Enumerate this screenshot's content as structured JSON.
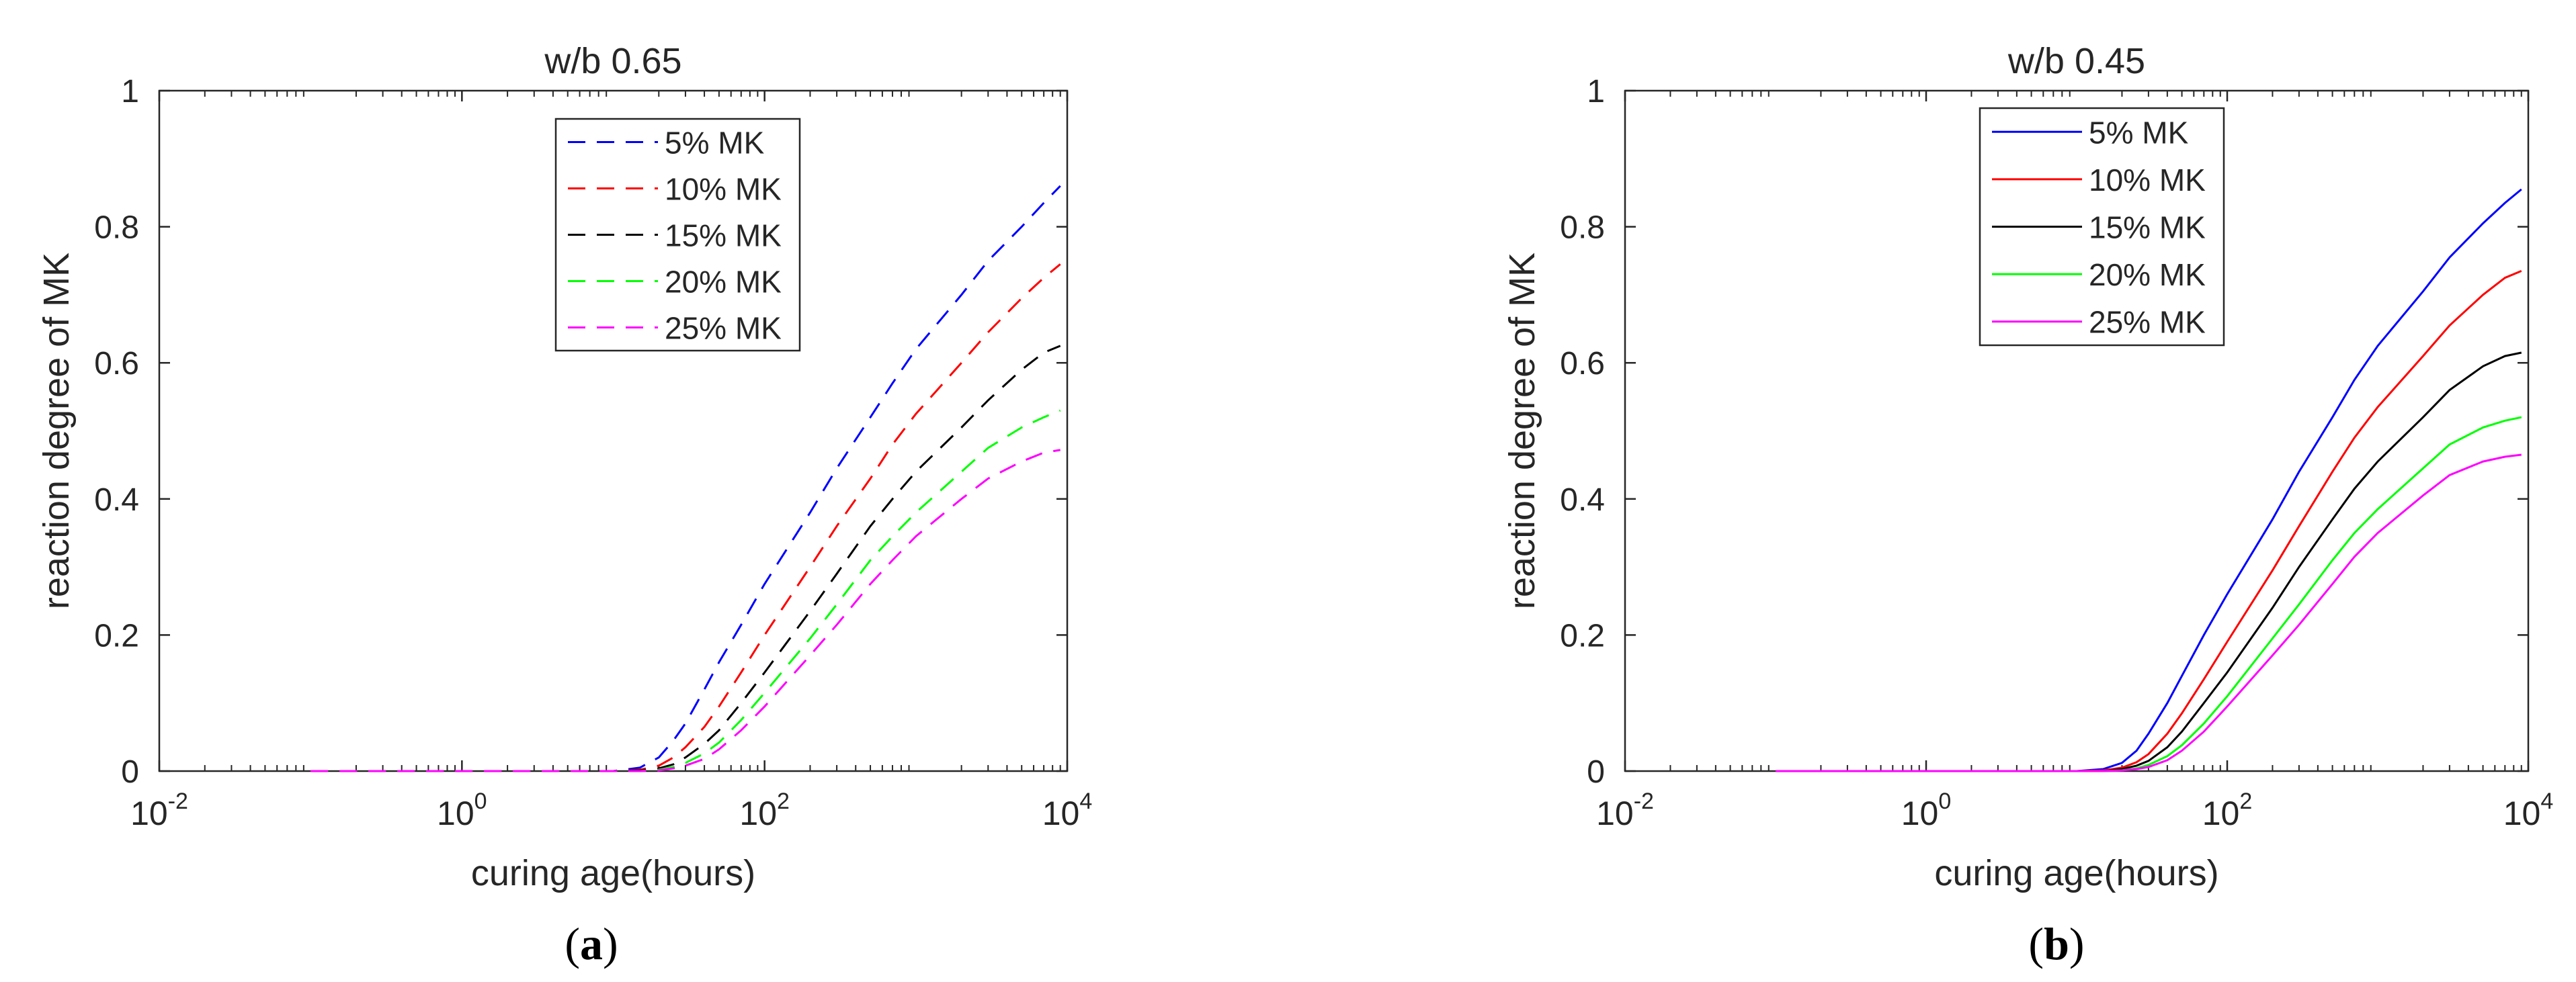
{
  "chart_data": [
    {
      "type": "line",
      "panel": "(a)",
      "panel_letter": "a",
      "title": "w/b 0.65",
      "xlabel": "curing age(hours)",
      "ylabel": "reaction degree of MK",
      "xscale": "log",
      "xlim": [
        0.01,
        10000
      ],
      "ylim": [
        0,
        1
      ],
      "xticks": [
        "10^-2",
        "10^0",
        "10^2",
        "10^4"
      ],
      "yticks": [
        "0",
        "0.2",
        "0.4",
        "0.6",
        "0.8",
        "1"
      ],
      "line_style": "dashed",
      "grid": false,
      "legend_position": "top-center",
      "x": [
        0.1,
        1,
        10,
        15,
        20,
        25,
        30,
        40,
        50,
        70,
        100,
        200,
        300,
        500,
        700,
        1000,
        2000,
        3000,
        5000,
        7000,
        9000
      ],
      "series": [
        {
          "name": "5% MK",
          "color": "#0000ff",
          "values": [
            0,
            0,
            0,
            0.005,
            0.02,
            0.045,
            0.07,
            0.12,
            0.16,
            0.215,
            0.275,
            0.38,
            0.445,
            0.52,
            0.57,
            0.62,
            0.7,
            0.75,
            0.8,
            0.835,
            0.86
          ]
        },
        {
          "name": "10% MK",
          "color": "#ff0000",
          "values": [
            0,
            0,
            0,
            0.002,
            0.008,
            0.02,
            0.035,
            0.065,
            0.095,
            0.145,
            0.2,
            0.3,
            0.36,
            0.43,
            0.48,
            0.525,
            0.6,
            0.645,
            0.695,
            0.725,
            0.745
          ]
        },
        {
          "name": "15% MK",
          "color": "#000000",
          "values": [
            0,
            0,
            0,
            0.001,
            0.004,
            0.01,
            0.02,
            0.04,
            0.06,
            0.1,
            0.145,
            0.235,
            0.29,
            0.36,
            0.4,
            0.44,
            0.505,
            0.545,
            0.59,
            0.615,
            0.625
          ]
        },
        {
          "name": "20% MK",
          "color": "#00ff00",
          "values": [
            0,
            0,
            0,
            0,
            0.002,
            0.006,
            0.012,
            0.026,
            0.042,
            0.075,
            0.115,
            0.195,
            0.245,
            0.31,
            0.345,
            0.38,
            0.44,
            0.475,
            0.505,
            0.52,
            0.53
          ]
        },
        {
          "name": "25% MK",
          "color": "#ff00ff",
          "values": [
            0,
            0,
            0,
            0,
            0.001,
            0.004,
            0.008,
            0.018,
            0.032,
            0.06,
            0.095,
            0.17,
            0.215,
            0.275,
            0.31,
            0.345,
            0.4,
            0.43,
            0.455,
            0.468,
            0.472
          ]
        }
      ]
    },
    {
      "type": "line",
      "panel": "(b)",
      "panel_letter": "b",
      "title": "w/b 0.45",
      "xlabel": "curing age(hours)",
      "ylabel": "reaction degree of MK",
      "xscale": "log",
      "xlim": [
        0.01,
        10000
      ],
      "ylim": [
        0,
        1
      ],
      "xticks": [
        "10^-2",
        "10^0",
        "10^2",
        "10^4"
      ],
      "yticks": [
        "0",
        "0.2",
        "0.4",
        "0.6",
        "0.8",
        "1"
      ],
      "line_style": "solid",
      "grid": false,
      "legend_position": "top-left",
      "x": [
        0.1,
        1,
        10,
        15,
        20,
        25,
        30,
        40,
        50,
        70,
        100,
        200,
        300,
        500,
        700,
        1000,
        2000,
        3000,
        5000,
        7000,
        9000
      ],
      "series": [
        {
          "name": "5% MK",
          "color": "#0000ff",
          "values": [
            0,
            0,
            0,
            0.003,
            0.012,
            0.03,
            0.055,
            0.1,
            0.14,
            0.2,
            0.26,
            0.37,
            0.44,
            0.52,
            0.575,
            0.625,
            0.705,
            0.755,
            0.805,
            0.835,
            0.855
          ]
        },
        {
          "name": "10% MK",
          "color": "#ff0000",
          "values": [
            0,
            0,
            0,
            0.001,
            0.005,
            0.013,
            0.025,
            0.055,
            0.085,
            0.135,
            0.19,
            0.295,
            0.36,
            0.44,
            0.49,
            0.535,
            0.61,
            0.655,
            0.7,
            0.725,
            0.735
          ]
        },
        {
          "name": "15% MK",
          "color": "#000000",
          "values": [
            0,
            0,
            0,
            0,
            0.003,
            0.008,
            0.015,
            0.035,
            0.058,
            0.1,
            0.145,
            0.24,
            0.3,
            0.37,
            0.415,
            0.455,
            0.52,
            0.56,
            0.595,
            0.61,
            0.615
          ]
        },
        {
          "name": "20% MK",
          "color": "#00ff00",
          "values": [
            0,
            0,
            0,
            0,
            0.001,
            0.004,
            0.009,
            0.022,
            0.038,
            0.07,
            0.11,
            0.195,
            0.245,
            0.31,
            0.35,
            0.385,
            0.445,
            0.48,
            0.505,
            0.515,
            0.52
          ]
        },
        {
          "name": "25% MK",
          "color": "#ff00ff",
          "values": [
            0,
            0,
            0,
            0,
            0.001,
            0.003,
            0.006,
            0.016,
            0.03,
            0.058,
            0.095,
            0.17,
            0.215,
            0.275,
            0.315,
            0.35,
            0.405,
            0.435,
            0.455,
            0.462,
            0.465
          ]
        }
      ]
    }
  ]
}
